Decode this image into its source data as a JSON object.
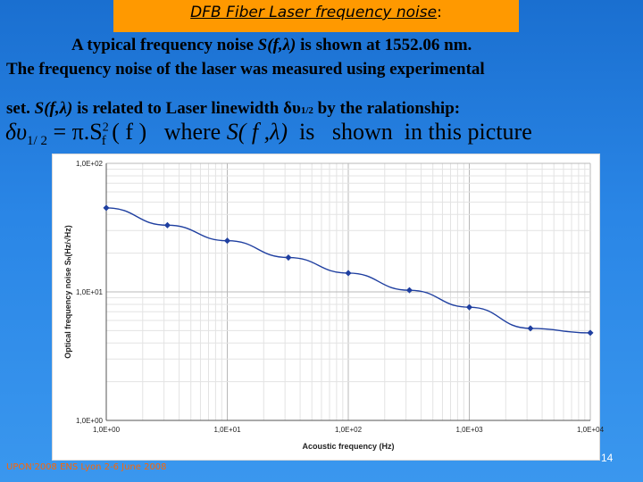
{
  "slide": {
    "title": "DFB Fiber Laser frequency noise",
    "title_suffix": ":",
    "line1_prefix": "A typical frequency noise ",
    "line1_symbol": "S(f,λ)",
    "line1_suffix": " is shown at 1552.06 nm.",
    "line2": "The frequency noise of the laser was measured using experimental",
    "line3_prefix": "set. ",
    "line3_symbol": "S(f,λ)",
    "line3_middle": " is related to Laser linewidth δυ",
    "line3_sub": "1/2",
    "line3_suffix": " by the ralationship:",
    "formula_lhs": "δυ",
    "formula_sub": "1/ 2",
    "formula_eq": " = π.S",
    "formula_exp": "2",
    "formula_fsub": "f",
    "formula_arg": " ( f )",
    "formula_where": "where",
    "formula_S": "S( f ,λ)",
    "formula_is": "is",
    "formula_shown": "shown",
    "formula_tail": "in this picture",
    "footer": "UPON'2008 ENS Lyon 2-6 June 2008",
    "page_number": "14"
  },
  "chart_data": {
    "type": "line",
    "xscale": "log",
    "yscale": "log",
    "xlim": [
      1,
      10000
    ],
    "ylim": [
      1,
      100
    ],
    "grid": true,
    "xlabel": "Acoustic frequency (Hz)",
    "ylabel": "Optical frequency noise Sₕ(Hz/√Hz)",
    "x_ticks": [
      "1,0E+00",
      "1,0E+01",
      "1,0E+02",
      "1,0E+03",
      "1,0E+04"
    ],
    "y_ticks": [
      "1,0E+00",
      "1,0E+01",
      "1,0E+02"
    ],
    "series": [
      {
        "color": "#1f3fa0",
        "points": [
          {
            "x": 1,
            "y": 45
          },
          {
            "x": 3.2,
            "y": 33
          },
          {
            "x": 10,
            "y": 25
          },
          {
            "x": 32,
            "y": 18.5
          },
          {
            "x": 100,
            "y": 14
          },
          {
            "x": 320,
            "y": 10.3
          },
          {
            "x": 1000,
            "y": 7.6
          },
          {
            "x": 3200,
            "y": 5.2
          },
          {
            "x": 10000,
            "y": 4.8
          }
        ]
      }
    ]
  }
}
